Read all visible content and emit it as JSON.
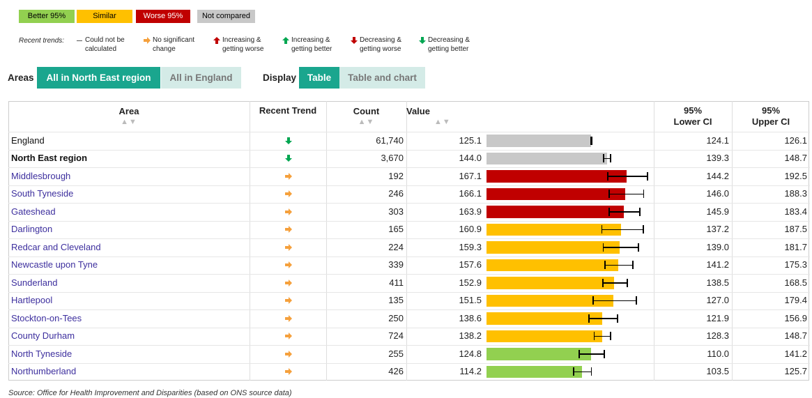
{
  "legend": {
    "significance": [
      {
        "label": "Better 95%",
        "color": "#92d050",
        "text_color": "#000000"
      },
      {
        "label": "Similar",
        "color": "#ffc000",
        "text_color": "#000000"
      },
      {
        "label": "Worse 95%",
        "color": "#c00000",
        "text_color": "#ffffff"
      },
      {
        "label": "Not compared",
        "color": "#c8c8c8",
        "text_color": "#000000"
      }
    ],
    "trends_label": "Recent trends:",
    "trends": [
      {
        "label": "Could not be calculated",
        "dir": "none",
        "color": "#555555"
      },
      {
        "label": "No significant change",
        "dir": "right",
        "color": "#f5a03c"
      },
      {
        "label": "Increasing & getting worse",
        "dir": "up",
        "color": "#c00000"
      },
      {
        "label": "Increasing & getting better",
        "dir": "up",
        "color": "#00a651"
      },
      {
        "label": "Decreasing & getting worse",
        "dir": "down",
        "color": "#c00000"
      },
      {
        "label": "Decreasing & getting better",
        "dir": "down",
        "color": "#00a651"
      }
    ]
  },
  "controls": {
    "areas_label": "Areas",
    "areas": [
      "All in North East region",
      "All in England"
    ],
    "display_label": "Display",
    "display": [
      "Table",
      "Table and chart"
    ]
  },
  "table": {
    "headers": [
      "Area",
      "Recent Trend",
      "Count",
      "Value",
      "95% Lower CI",
      "95% Upper CI"
    ],
    "rows": [
      {
        "area": "England",
        "style": "plain",
        "trend": {
          "dir": "down",
          "color": "#00a651"
        },
        "count": "61,740",
        "value": "125.1",
        "lower": "124.1",
        "upper": "126.1",
        "color": "#c8c8c8"
      },
      {
        "area": "North East region",
        "style": "bold",
        "trend": {
          "dir": "down",
          "color": "#00a651"
        },
        "count": "3,670",
        "value": "144.0",
        "lower": "139.3",
        "upper": "148.7",
        "color": "#c8c8c8"
      },
      {
        "area": "Middlesbrough",
        "style": "link",
        "trend": {
          "dir": "right",
          "color": "#f5a03c"
        },
        "count": "192",
        "value": "167.1",
        "lower": "144.2",
        "upper": "192.5",
        "color": "#c00000"
      },
      {
        "area": "South Tyneside",
        "style": "link",
        "trend": {
          "dir": "right",
          "color": "#f5a03c"
        },
        "count": "246",
        "value": "166.1",
        "lower": "146.0",
        "upper": "188.3",
        "color": "#c00000"
      },
      {
        "area": "Gateshead",
        "style": "link",
        "trend": {
          "dir": "right",
          "color": "#f5a03c"
        },
        "count": "303",
        "value": "163.9",
        "lower": "145.9",
        "upper": "183.4",
        "color": "#c00000"
      },
      {
        "area": "Darlington",
        "style": "link",
        "trend": {
          "dir": "right",
          "color": "#f5a03c"
        },
        "count": "165",
        "value": "160.9",
        "lower": "137.2",
        "upper": "187.5",
        "color": "#ffc000"
      },
      {
        "area": "Redcar and Cleveland",
        "style": "link",
        "trend": {
          "dir": "right",
          "color": "#f5a03c"
        },
        "count": "224",
        "value": "159.3",
        "lower": "139.0",
        "upper": "181.7",
        "color": "#ffc000"
      },
      {
        "area": "Newcastle upon Tyne",
        "style": "link",
        "trend": {
          "dir": "right",
          "color": "#f5a03c"
        },
        "count": "339",
        "value": "157.6",
        "lower": "141.2",
        "upper": "175.3",
        "color": "#ffc000"
      },
      {
        "area": "Sunderland",
        "style": "link",
        "trend": {
          "dir": "right",
          "color": "#f5a03c"
        },
        "count": "411",
        "value": "152.9",
        "lower": "138.5",
        "upper": "168.5",
        "color": "#ffc000"
      },
      {
        "area": "Hartlepool",
        "style": "link",
        "trend": {
          "dir": "right",
          "color": "#f5a03c"
        },
        "count": "135",
        "value": "151.5",
        "lower": "127.0",
        "upper": "179.4",
        "color": "#ffc000"
      },
      {
        "area": "Stockton-on-Tees",
        "style": "link",
        "trend": {
          "dir": "right",
          "color": "#f5a03c"
        },
        "count": "250",
        "value": "138.6",
        "lower": "121.9",
        "upper": "156.9",
        "color": "#ffc000"
      },
      {
        "area": "County Durham",
        "style": "link",
        "trend": {
          "dir": "right",
          "color": "#f5a03c"
        },
        "count": "724",
        "value": "138.2",
        "lower": "128.3",
        "upper": "148.7",
        "color": "#ffc000"
      },
      {
        "area": "North Tyneside",
        "style": "link",
        "trend": {
          "dir": "right",
          "color": "#f5a03c"
        },
        "count": "255",
        "value": "124.8",
        "lower": "110.0",
        "upper": "141.2",
        "color": "#92d050"
      },
      {
        "area": "Northumberland",
        "style": "link",
        "trend": {
          "dir": "right",
          "color": "#f5a03c"
        },
        "count": "426",
        "value": "114.2",
        "lower": "103.5",
        "upper": "125.7",
        "color": "#92d050"
      }
    ]
  },
  "footer": {
    "source": "Source: Office for Health Improvement and Disparities (based on ONS source data)"
  }
}
